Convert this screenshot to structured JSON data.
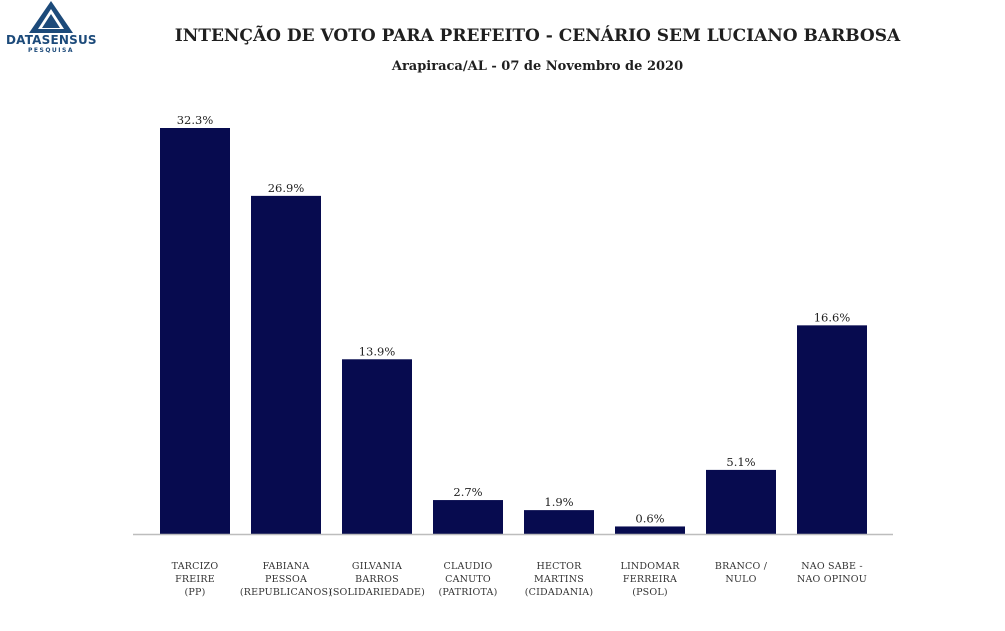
{
  "logo": {
    "name": "DATASENSUS",
    "sub": "PESQUISA"
  },
  "colors": {
    "bar": "#070b4f",
    "axis": "#bdbdbd",
    "logo": "#1c4a7a"
  },
  "chart_data": {
    "type": "bar",
    "title": "INTENÇÃO DE VOTO PARA PREFEITO - CENÁRIO SEM LUCIANO BARBOSA",
    "subtitle": "Arapiraca/AL - 07 de Novembro de 2020",
    "categories": [
      [
        "TARCIZO",
        "FREIRE",
        "(PP)"
      ],
      [
        "FABIANA",
        "PESSOA",
        "(REPUBLICANOS)"
      ],
      [
        "GILVANIA",
        "BARROS",
        "(SOLIDARIEDADE)"
      ],
      [
        "CLAUDIO",
        "CANUTO",
        "(PATRIOTA)"
      ],
      [
        "HECTOR",
        "MARTINS",
        "(CIDADANIA)"
      ],
      [
        "LINDOMAR",
        "FERREIRA",
        "(PSOL)"
      ],
      [
        "BRANCO /",
        "NULO"
      ],
      [
        "NAO SABE  -",
        "NAO OPINOU"
      ]
    ],
    "values": [
      32.3,
      26.9,
      13.9,
      2.7,
      1.9,
      0.6,
      5.1,
      16.6
    ],
    "value_labels": [
      "32.3%",
      "26.9%",
      "13.9%",
      "2.7%",
      "1.9%",
      "0.6%",
      "5.1%",
      "16.6%"
    ],
    "ylim": [
      0,
      32.3
    ],
    "grid": false,
    "legend": "none"
  }
}
